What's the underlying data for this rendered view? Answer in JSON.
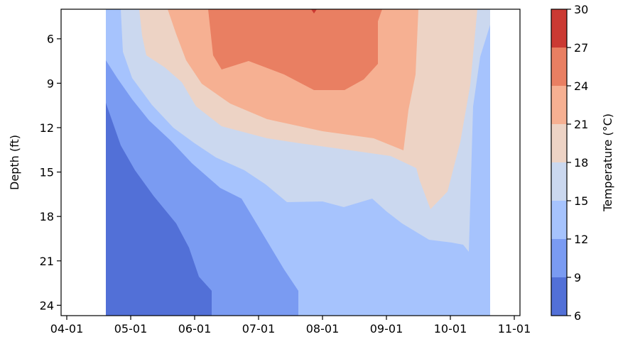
{
  "chart_data": {
    "type": "heatmap",
    "subtype": "filled-contour",
    "title": "",
    "xlabel": "",
    "ylabel": "Depth (ft)",
    "y_inverted": true,
    "x_ticks": [
      "04-01",
      "05-01",
      "06-01",
      "07-01",
      "08-01",
      "09-01",
      "10-01",
      "11-01"
    ],
    "x_range_days_from_first_tick": [
      0,
      214
    ],
    "y_ticks": [
      6,
      9,
      12,
      15,
      18,
      21,
      24
    ],
    "y_range": [
      4.0,
      24.7
    ],
    "data_x_extent": [
      "04-24",
      "10-20"
    ],
    "colorbar": {
      "label": "Temperature (°C)",
      "ticks": [
        6,
        9,
        12,
        15,
        18,
        21,
        24,
        27,
        30
      ],
      "levels": [
        6,
        9,
        12,
        15,
        18,
        21,
        24,
        27,
        30
      ],
      "colors": [
        "#5270d7",
        "#7a9bf2",
        "#a6c3fd",
        "#cbd8ef",
        "#edd3c5",
        "#f6b092",
        "#e97f62",
        "#cb3a33"
      ]
    },
    "temperature_bands": [
      {
        "range": [
          6,
          9
        ],
        "color": "#5270d7",
        "description": "coldest water at depth in spring"
      },
      {
        "range": [
          9,
          12
        ],
        "color": "#7a9bf2"
      },
      {
        "range": [
          12,
          15
        ],
        "color": "#a6c3fd"
      },
      {
        "range": [
          15,
          18
        ],
        "color": "#cbd8ef"
      },
      {
        "range": [
          18,
          21
        ],
        "color": "#edd3c5"
      },
      {
        "range": [
          21,
          24
        ],
        "color": "#f6b092"
      },
      {
        "range": [
          24,
          27
        ],
        "color": "#e97f62"
      },
      {
        "range": [
          27,
          30
        ],
        "color": "#cb3a33"
      }
    ]
  }
}
